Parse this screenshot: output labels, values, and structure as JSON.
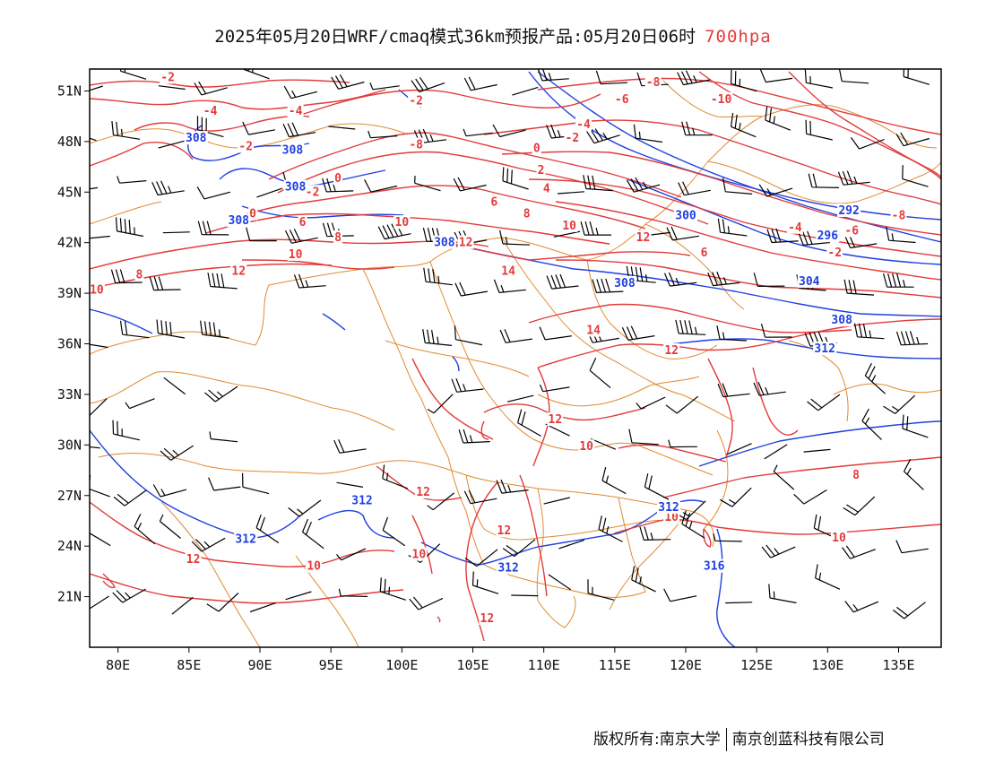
{
  "title": {
    "text": "2025年05月20日WRF/cmaq模式36km预报产品:05月20日06时",
    "level": "700hpa"
  },
  "colors": {
    "temperature": "#e23b3b",
    "geopotential": "#1f3fe0",
    "border": "#e08a30",
    "wind": "#000000"
  },
  "axes": {
    "lon_ticks": [
      "80E",
      "85E",
      "90E",
      "95E",
      "100E",
      "105E",
      "110E",
      "115E",
      "120E",
      "125E",
      "130E",
      "135E"
    ],
    "lat_ticks": [
      "51N",
      "48N",
      "45N",
      "42N",
      "39N",
      "36N",
      "33N",
      "30N",
      "27N",
      "24N",
      "21N"
    ]
  },
  "map": {
    "lon_range": [
      78,
      138
    ],
    "lat_range": [
      18,
      52.3
    ]
  },
  "temperature_labels": [
    {
      "text": "-2",
      "lon": 83.5,
      "lat": 51.8
    },
    {
      "text": "-4",
      "lon": 86.5,
      "lat": 49.8
    },
    {
      "text": "-4",
      "lon": 92.5,
      "lat": 49.8
    },
    {
      "text": "-2",
      "lon": 89.0,
      "lat": 47.7
    },
    {
      "text": "-2",
      "lon": 101.0,
      "lat": 50.4
    },
    {
      "text": "-8",
      "lon": 101.0,
      "lat": 47.8
    },
    {
      "text": "-2",
      "lon": 93.7,
      "lat": 45.0
    },
    {
      "text": "0",
      "lon": 95.5,
      "lat": 45.8
    },
    {
      "text": "0",
      "lon": 89.5,
      "lat": 43.7
    },
    {
      "text": "6",
      "lon": 93.0,
      "lat": 43.2
    },
    {
      "text": "8",
      "lon": 95.5,
      "lat": 42.3
    },
    {
      "text": "10",
      "lon": 100.0,
      "lat": 43.2
    },
    {
      "text": "10",
      "lon": 92.5,
      "lat": 41.3
    },
    {
      "text": "12",
      "lon": 88.5,
      "lat": 40.3
    },
    {
      "text": "8",
      "lon": 81.5,
      "lat": 40.1
    },
    {
      "text": "10",
      "lon": 78.5,
      "lat": 39.2
    },
    {
      "text": "12",
      "lon": 104.5,
      "lat": 42.0
    },
    {
      "text": "14",
      "lon": 107.5,
      "lat": 40.3
    },
    {
      "text": "-8",
      "lon": 117.7,
      "lat": 51.5
    },
    {
      "text": "-6",
      "lon": 115.5,
      "lat": 50.5
    },
    {
      "text": "-4",
      "lon": 112.8,
      "lat": 49.0
    },
    {
      "text": "-2",
      "lon": 112.0,
      "lat": 48.2
    },
    {
      "text": "0",
      "lon": 109.5,
      "lat": 47.6
    },
    {
      "text": "2",
      "lon": 109.8,
      "lat": 46.3
    },
    {
      "text": "4",
      "lon": 110.2,
      "lat": 45.2
    },
    {
      "text": "6",
      "lon": 106.5,
      "lat": 44.4
    },
    {
      "text": "8",
      "lon": 108.8,
      "lat": 43.7
    },
    {
      "text": "10",
      "lon": 111.8,
      "lat": 43.0
    },
    {
      "text": "12",
      "lon": 117.0,
      "lat": 42.3
    },
    {
      "text": "14",
      "lon": 113.5,
      "lat": 36.8
    },
    {
      "text": "12",
      "lon": 119.0,
      "lat": 35.6
    },
    {
      "text": "12",
      "lon": 110.8,
      "lat": 31.5
    },
    {
      "text": "10",
      "lon": 113.0,
      "lat": 29.9
    },
    {
      "text": "12",
      "lon": 101.5,
      "lat": 27.2
    },
    {
      "text": "12",
      "lon": 107.2,
      "lat": 24.9
    },
    {
      "text": "10",
      "lon": 119.0,
      "lat": 25.7
    },
    {
      "text": "10",
      "lon": 101.2,
      "lat": 23.5
    },
    {
      "text": "10",
      "lon": 93.8,
      "lat": 22.8
    },
    {
      "text": "12",
      "lon": 85.3,
      "lat": 23.2
    },
    {
      "text": "12",
      "lon": 106.0,
      "lat": 19.7
    },
    {
      "text": "-10",
      "lon": 122.5,
      "lat": 50.5
    },
    {
      "text": "-8",
      "lon": 135.0,
      "lat": 43.6
    },
    {
      "text": "-6",
      "lon": 131.7,
      "lat": 42.7
    },
    {
      "text": "-4",
      "lon": 127.7,
      "lat": 42.9
    },
    {
      "text": "-2",
      "lon": 130.5,
      "lat": 41.4
    },
    {
      "text": "6",
      "lon": 121.3,
      "lat": 41.4
    },
    {
      "text": "8",
      "lon": 132.0,
      "lat": 28.2
    },
    {
      "text": "10",
      "lon": 130.8,
      "lat": 24.5
    }
  ],
  "height_labels": [
    {
      "text": "308",
      "lon": 85.5,
      "lat": 48.2
    },
    {
      "text": "308",
      "lon": 92.3,
      "lat": 47.5
    },
    {
      "text": "308",
      "lon": 92.5,
      "lat": 45.3
    },
    {
      "text": "308",
      "lon": 88.5,
      "lat": 43.3
    },
    {
      "text": "308",
      "lon": 103.0,
      "lat": 42.0
    },
    {
      "text": "308",
      "lon": 115.7,
      "lat": 39.6
    },
    {
      "text": "300",
      "lon": 120.0,
      "lat": 43.6
    },
    {
      "text": "292",
      "lon": 131.5,
      "lat": 43.9
    },
    {
      "text": "296",
      "lon": 130.0,
      "lat": 42.4
    },
    {
      "text": "304",
      "lon": 128.7,
      "lat": 39.7
    },
    {
      "text": "308",
      "lon": 131.0,
      "lat": 37.4
    },
    {
      "text": "312",
      "lon": 129.8,
      "lat": 35.7
    },
    {
      "text": "312",
      "lon": 97.2,
      "lat": 26.7
    },
    {
      "text": "312",
      "lon": 89.0,
      "lat": 24.4
    },
    {
      "text": "312",
      "lon": 118.8,
      "lat": 26.3
    },
    {
      "text": "312",
      "lon": 107.5,
      "lat": 22.7
    },
    {
      "text": "316",
      "lon": 122.0,
      "lat": 22.8
    }
  ],
  "footer": {
    "left": "版权所有:南京大学",
    "right": "南京创蓝科技有限公司"
  }
}
